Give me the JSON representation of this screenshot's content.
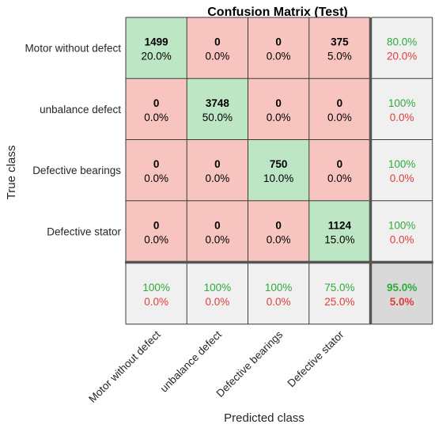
{
  "chart_data": {
    "type": "heatmap",
    "title": "Confusion Matrix (Test)",
    "xlabel": "Predicted class",
    "ylabel": "True class",
    "classes": [
      "Motor without defect",
      "unbalance defect",
      "Defective bearings",
      "Defective stator"
    ],
    "counts": [
      [
        1499,
        0,
        0,
        375
      ],
      [
        0,
        3748,
        0,
        0
      ],
      [
        0,
        0,
        750,
        0
      ],
      [
        0,
        0,
        0,
        1124
      ]
    ],
    "percents": [
      [
        "20.0%",
        "0.0%",
        "0.0%",
        "5.0%"
      ],
      [
        "0.0%",
        "50.0%",
        "0.0%",
        "0.0%"
      ],
      [
        "0.0%",
        "0.0%",
        "10.0%",
        "0.0%"
      ],
      [
        "0.0%",
        "0.0%",
        "0.0%",
        "15.0%"
      ]
    ],
    "row_summary": [
      {
        "correct": "80.0%",
        "incorrect": "20.0%"
      },
      {
        "correct": "100%",
        "incorrect": "0.0%"
      },
      {
        "correct": "100%",
        "incorrect": "0.0%"
      },
      {
        "correct": "100%",
        "incorrect": "0.0%"
      }
    ],
    "column_summary": [
      {
        "correct": "100%",
        "incorrect": "0.0%"
      },
      {
        "correct": "100%",
        "incorrect": "0.0%"
      },
      {
        "correct": "100%",
        "incorrect": "0.0%"
      },
      {
        "correct": "75.0%",
        "incorrect": "25.0%"
      }
    ],
    "overall": {
      "correct": "95.0%",
      "incorrect": "5.0%"
    }
  },
  "colors": {
    "diagonal": "#bde6c4",
    "off_diagonal": "#f7c4c0",
    "summary": "#f0f0f0",
    "overall": "#d9d9d9",
    "correct_text": "#2eab3a",
    "incorrect_text": "#e23c37",
    "grid": "#3a3a3a"
  }
}
